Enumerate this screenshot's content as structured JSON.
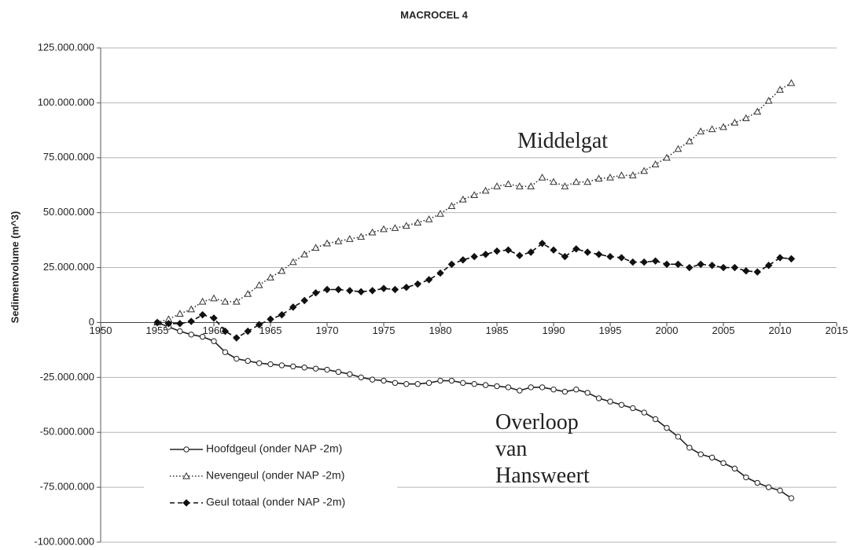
{
  "chart_data": {
    "type": "line",
    "title": "MACROCEL 4",
    "ylabel": "Sedimentvolume (m^3)",
    "x": [
      1955,
      1956,
      1957,
      1958,
      1959,
      1960,
      1961,
      1962,
      1963,
      1964,
      1965,
      1966,
      1967,
      1968,
      1969,
      1970,
      1971,
      1972,
      1973,
      1974,
      1975,
      1976,
      1977,
      1978,
      1979,
      1980,
      1981,
      1982,
      1983,
      1984,
      1985,
      1986,
      1987,
      1988,
      1989,
      1990,
      1991,
      1992,
      1993,
      1994,
      1995,
      1996,
      1997,
      1998,
      1999,
      2000,
      2001,
      2002,
      2003,
      2004,
      2005,
      2006,
      2007,
      2008,
      2009,
      2010,
      2011
    ],
    "series": [
      {
        "name": "Hoofdgeul (onder NAP -2m)",
        "color": "#222222",
        "dash": "solid",
        "marker": "circle",
        "marker_fill": "#ffffff",
        "values": [
          0,
          -2000000,
          -4000000,
          -5500000,
          -6500000,
          -8500000,
          -13500000,
          -16500000,
          -17500000,
          -18500000,
          -19000000,
          -19500000,
          -20000000,
          -20500000,
          -21000000,
          -21500000,
          -22500000,
          -23500000,
          -25000000,
          -26000000,
          -26500000,
          -27500000,
          -28000000,
          -28000000,
          -27500000,
          -26500000,
          -26500000,
          -27500000,
          -28000000,
          -28500000,
          -29000000,
          -29500000,
          -31000000,
          -29500000,
          -29500000,
          -30500000,
          -31500000,
          -30500000,
          -32000000,
          -34500000,
          -36000000,
          -37500000,
          -39000000,
          -41000000,
          -44000000,
          -48000000,
          -52000000,
          -57000000,
          -60000000,
          -61500000,
          -64000000,
          -66500000,
          -70500000,
          -73000000,
          -75000000,
          -76500000,
          -80000000
        ]
      },
      {
        "name": "Nevengeul (onder NAP -2m)",
        "color": "#333333",
        "dash": "dotted",
        "marker": "triangle",
        "marker_fill": "#ffffff",
        "values": [
          0,
          1500000,
          4000000,
          6000000,
          9500000,
          11000000,
          9500000,
          9500000,
          13000000,
          17000000,
          20500000,
          23500000,
          27500000,
          31000000,
          34000000,
          36000000,
          37000000,
          38000000,
          39000000,
          41000000,
          42500000,
          43000000,
          44000000,
          45500000,
          47000000,
          49500000,
          53000000,
          56000000,
          58000000,
          60000000,
          62000000,
          63000000,
          62000000,
          62000000,
          66000000,
          64000000,
          62000000,
          64000000,
          64000000,
          65500000,
          66000000,
          67000000,
          67000000,
          69000000,
          72000000,
          75000000,
          79000000,
          82500000,
          87000000,
          88000000,
          89000000,
          91000000,
          93000000,
          96000000,
          101000000,
          106000000,
          109000000
        ]
      },
      {
        "name": "Geul totaal (onder NAP -2m)",
        "color": "#111111",
        "dash": "dashed",
        "marker": "diamond",
        "marker_fill": "#111111",
        "values": [
          0,
          -500000,
          -500000,
          500000,
          3500000,
          2000000,
          -4000000,
          -7000000,
          -4000000,
          -1000000,
          1500000,
          3500000,
          7000000,
          10000000,
          13500000,
          15000000,
          15000000,
          14500000,
          14000000,
          14500000,
          15500000,
          15000000,
          16000000,
          17500000,
          19500000,
          22500000,
          26500000,
          28500000,
          30000000,
          31000000,
          32500000,
          33000000,
          30500000,
          32000000,
          36000000,
          33000000,
          30000000,
          33500000,
          32000000,
          31000000,
          30000000,
          29500000,
          27500000,
          27500000,
          28000000,
          26500000,
          26500000,
          25000000,
          26500000,
          26000000,
          25000000,
          25000000,
          23500000,
          23000000,
          26000000,
          29500000,
          29000000
        ]
      }
    ],
    "xlim": [
      1950,
      2015
    ],
    "xticks": [
      1950,
      1955,
      1960,
      1965,
      1970,
      1975,
      1980,
      1985,
      1990,
      1995,
      2000,
      2005,
      2010,
      2015
    ],
    "ylim": [
      -100000000,
      125000000
    ],
    "yticks": [
      {
        "value": -100000000,
        "label": "-100.000.000"
      },
      {
        "value": -75000000,
        "label": "-75.000.000"
      },
      {
        "value": -50000000,
        "label": "-50.000.000"
      },
      {
        "value": -25000000,
        "label": "-25.000.000"
      },
      0,
      {
        "value": 25000000,
        "label": "25.000.000"
      },
      {
        "value": 50000000,
        "label": "50.000.000"
      },
      {
        "value": 75000000,
        "label": "75.000.000"
      },
      {
        "value": 100000000,
        "label": "100.000.000"
      },
      {
        "value": 125000000,
        "label": "125.000.000"
      }
    ],
    "grid": true,
    "legend": "lower left",
    "annotations": [
      {
        "lines": [
          "Middelgat"
        ]
      },
      {
        "lines": [
          "Overloop",
          "van",
          "Hansweert"
        ]
      }
    ]
  }
}
